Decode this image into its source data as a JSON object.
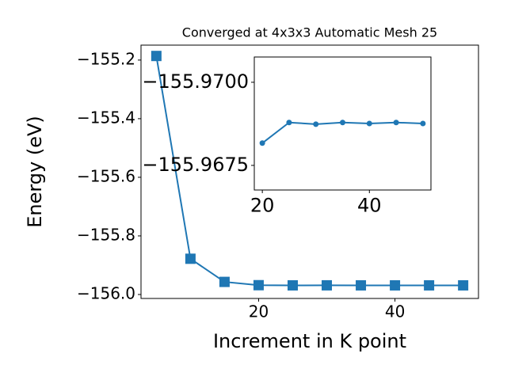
{
  "chart_data": [
    {
      "type": "line",
      "title": "Converged at 4x3x3 Automatic Mesh 25",
      "x_label": "Increment in K point",
      "y_label": "Energy (eV)",
      "marker": "square",
      "x": [
        5,
        10,
        15,
        20,
        25,
        30,
        35,
        40,
        45,
        50
      ],
      "series": [
        {
          "color": "#1f77b4",
          "values": [
            -155.186,
            -155.878,
            -155.957,
            -155.9682,
            -155.9688,
            -155.9687,
            -155.9688,
            -155.9688,
            -155.9688,
            -155.9688
          ]
        }
      ],
      "xlim": [
        2.75,
        52.25
      ],
      "ylim": [
        -156.0135,
        -155.149
      ],
      "xticks": [
        20,
        40
      ],
      "yticks": [
        {
          "value": -155.2,
          "label": "−155.2"
        },
        {
          "value": -155.4,
          "label": "−155.4"
        },
        {
          "value": -155.6,
          "label": "−155.6"
        },
        {
          "value": -155.8,
          "label": "−155.8"
        },
        {
          "value": -156.0,
          "label": "−156.0"
        }
      ]
    },
    {
      "type": "line",
      "marker": "circle",
      "x": [
        20,
        25,
        30,
        35,
        40,
        45,
        50
      ],
      "series": [
        {
          "color": "#1f77b4",
          "values": [
            -155.96817,
            -155.96879,
            -155.96874,
            -155.96879,
            -155.96876,
            -155.96879,
            -155.96876
          ]
        }
      ],
      "xlim": [
        18.5,
        51.5
      ],
      "ylim": [
        -155.96676,
        -155.97076
      ],
      "xticks": [
        20,
        40
      ],
      "yticks": [
        {
          "value": -155.97,
          "label": "−155.9700"
        },
        {
          "value": -155.9675,
          "label": "−155.9675"
        }
      ]
    }
  ]
}
